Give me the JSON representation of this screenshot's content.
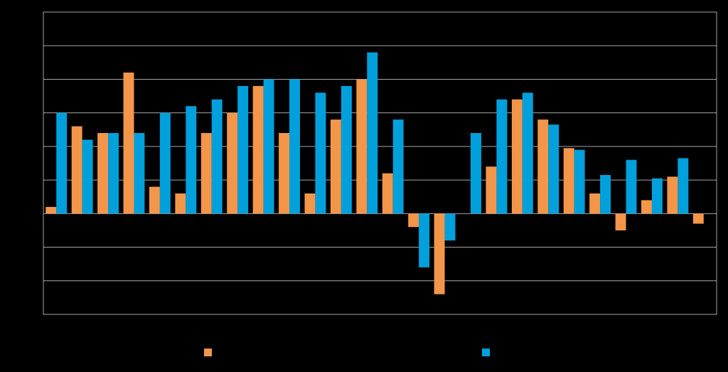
{
  "chart_data": {
    "type": "bar",
    "title": "",
    "xlabel": "",
    "ylabel": "",
    "ylim": [
      -3,
      6
    ],
    "grid": true,
    "legend_placement": "bottom",
    "categories": [
      "",
      "",
      "",
      "",
      "",
      "",
      "",
      "",
      "",
      "",
      "",
      "",
      "",
      "",
      "",
      "",
      "",
      "",
      "",
      "",
      "",
      "",
      "",
      "",
      "",
      ""
    ],
    "series": [
      {
        "color": "#F39649",
        "values": [
          0.2,
          2.6,
          2.4,
          4.2,
          0.8,
          0.6,
          2.4,
          3.0,
          3.8,
          2.4,
          0.6,
          2.8,
          4.0,
          1.2,
          -0.4,
          -2.4,
          0.0,
          1.4,
          3.4,
          2.8,
          1.95,
          0.6,
          -0.5,
          0.4,
          1.1,
          -0.3
        ]
      },
      {
        "color": "#00A0DC",
        "values": [
          3.0,
          2.2,
          2.4,
          2.4,
          3.0,
          3.2,
          3.4,
          3.8,
          4.0,
          4.0,
          3.6,
          3.8,
          4.8,
          2.8,
          -1.6,
          -0.8,
          2.4,
          3.4,
          3.6,
          2.65,
          1.9,
          1.15,
          1.6,
          1.05,
          1.65,
          0.0
        ]
      }
    ]
  },
  "legend": {
    "items": [
      {
        "color": "#F39649",
        "label": ""
      },
      {
        "color": "#00A0DC",
        "label": ""
      }
    ]
  }
}
